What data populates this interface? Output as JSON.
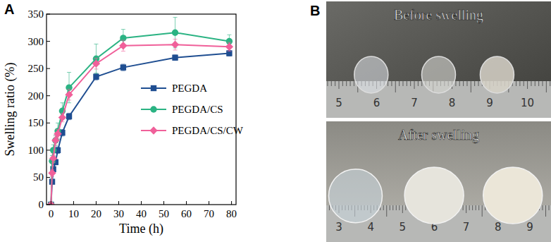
{
  "chart_data": {
    "type": "line",
    "title": "A",
    "x_label": "Time (h)",
    "y_label": "Swelling ratio (%)",
    "x": [
      0,
      0.5,
      1,
      2,
      3,
      5,
      8,
      20,
      32,
      55,
      79
    ],
    "xlim": [
      -2,
      82
    ],
    "xticks": [
      0,
      10,
      20,
      30,
      40,
      50,
      60,
      70,
      80
    ],
    "ylim": [
      0,
      350
    ],
    "yticks": [
      0,
      50,
      100,
      150,
      200,
      250,
      300,
      350
    ],
    "legend": "center right",
    "grid": false,
    "series": [
      {
        "name": "PEGDA",
        "color": "#1f4e91",
        "marker": "square",
        "values": [
          0,
          42,
          65,
          78,
          100,
          132,
          162,
          235,
          252,
          270,
          278
        ],
        "errors": [
          0,
          4,
          5,
          5,
          6,
          6,
          6,
          6,
          6,
          5,
          5
        ]
      },
      {
        "name": "PEGDA/CS",
        "color": "#2bb383",
        "marker": "circle",
        "values": [
          0,
          80,
          100,
          118,
          135,
          172,
          215,
          268,
          306,
          316,
          300
        ],
        "errors": [
          0,
          10,
          10,
          10,
          15,
          15,
          28,
          27,
          16,
          28,
          12
        ]
      },
      {
        "name": "PEGDA/CS/CW",
        "color": "#f0609a",
        "marker": "diamond",
        "values": [
          0,
          58,
          85,
          118,
          130,
          160,
          202,
          259,
          292,
          294,
          290
        ],
        "errors": [
          0,
          6,
          8,
          8,
          8,
          8,
          10,
          10,
          10,
          10,
          8
        ]
      }
    ]
  },
  "photo": {
    "label": "B",
    "top": {
      "caption": "Before swelling",
      "ruler": [
        "5",
        "6",
        "7",
        "8",
        "9",
        "10"
      ]
    },
    "bottom": {
      "caption": "After swelling",
      "ruler": [
        "3",
        "4",
        "5",
        "6",
        "7",
        "8",
        "9"
      ]
    }
  }
}
